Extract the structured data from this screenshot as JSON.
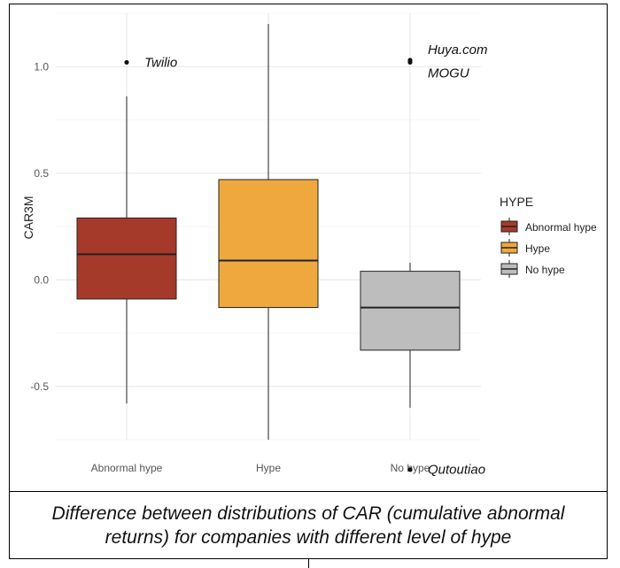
{
  "chart_data": {
    "type": "boxplot",
    "title": "",
    "xlabel": "",
    "ylabel": "CAR3M",
    "ylim": [
      -0.75,
      1.25
    ],
    "yticks": [
      -0.5,
      0.0,
      0.5,
      1.0
    ],
    "ytick_labels": [
      "-0.5",
      "0.0",
      "0.5",
      "1.0"
    ],
    "grid": true,
    "legend": {
      "title": "HYPE",
      "position": "right",
      "entries": [
        "Abnormal hype",
        "Hype",
        "No hype"
      ]
    },
    "categories": [
      "Abnormal hype",
      "Hype",
      "No hype"
    ],
    "boxes": [
      {
        "name": "Abnormal hype",
        "color": "#A63A2A",
        "whisker_low": -0.58,
        "q1": -0.09,
        "median": 0.12,
        "q3": 0.29,
        "whisker_high": 0.86,
        "outliers": [
          1.02
        ]
      },
      {
        "name": "Hype",
        "color": "#EFA83E",
        "whisker_low": -0.75,
        "q1": -0.13,
        "median": 0.09,
        "q3": 0.47,
        "whisker_high": 1.2,
        "outliers": []
      },
      {
        "name": "No hype",
        "color": "#BDBDBD",
        "whisker_low": -0.6,
        "q1": -0.33,
        "median": -0.13,
        "q3": 0.04,
        "whisker_high": 0.08,
        "outliers": [
          1.02,
          1.03,
          -0.89
        ]
      }
    ],
    "annotations": [
      {
        "text": "Twilio",
        "category": "Abnormal hype",
        "y": 1.02
      },
      {
        "text": "Huya.com",
        "category": "No hype",
        "y": 1.08
      },
      {
        "text": "MOGU",
        "category": "No hype",
        "y": 0.97
      },
      {
        "text": "Qutoutiao",
        "category": "No hype",
        "y": -0.89
      }
    ]
  },
  "caption": "Difference between distributions of CAR (cumulative abnormal returns) for companies with different level of hype"
}
